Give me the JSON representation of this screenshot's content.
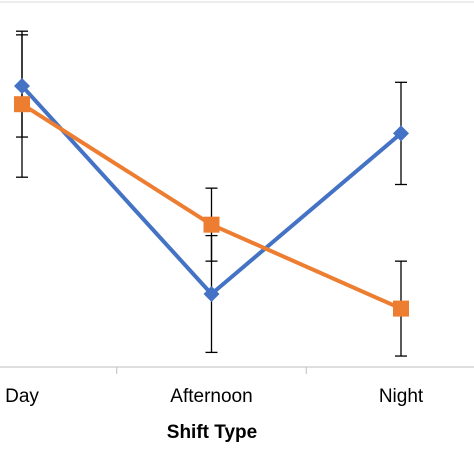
{
  "chart_data": {
    "type": "line",
    "x_label": "Shift Type",
    "categories": [
      "Day",
      "Afternoon",
      "Night"
    ],
    "series": [
      {
        "color": "#4472c4",
        "marker": "diamond",
        "values": [
          77,
          20,
          64
        ],
        "errors": [
          14,
          16,
          14
        ]
      },
      {
        "color": "#ed7d31",
        "marker": "square",
        "values": [
          72,
          39,
          16
        ],
        "errors": [
          20,
          10,
          13
        ]
      }
    ],
    "ylim": [
      0,
      100
    ]
  }
}
